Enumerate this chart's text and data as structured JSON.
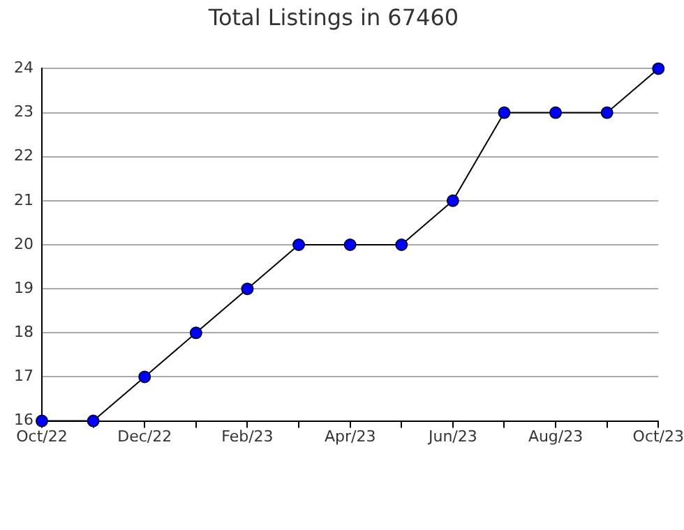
{
  "chart_data": {
    "type": "line",
    "title": "Total Listings in 67460",
    "categories": [
      "Oct/22",
      null,
      "Dec/22",
      null,
      "Feb/23",
      null,
      "Apr/23",
      null,
      "Jun/23",
      null,
      "Aug/23",
      null,
      "Oct/23"
    ],
    "series": [
      {
        "color": "#0000ff",
        "values": [
          16,
          16,
          17,
          18,
          19,
          20,
          20,
          20,
          21,
          23,
          23,
          23,
          24
        ]
      }
    ],
    "ylim": [
      16,
      24
    ],
    "yticks": [
      16,
      17,
      18,
      19,
      20,
      21,
      22,
      23,
      24
    ],
    "grid": "y",
    "marker": "circle",
    "legend": false
  }
}
